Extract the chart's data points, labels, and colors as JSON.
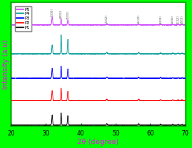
{
  "xlabel": "2θ (degree)",
  "ylabel": "Intensity (a.u)",
  "xlim": [
    20,
    70
  ],
  "background_color": "#ffffff",
  "border_color": "#00ff00",
  "xlabel_color": "#ff00ff",
  "ylabel_color": "#ff00ff",
  "legend_labels": [
    "P5",
    "P4",
    "P3",
    "P2",
    "P1"
  ],
  "legend_colors": [
    "#cc44ff",
    "#009999",
    "#0000ff",
    "#ff0000",
    "#000000"
  ],
  "peak_positions": [
    31.8,
    34.4,
    36.3,
    47.5,
    56.6,
    62.9,
    66.4,
    67.9,
    69.0
  ],
  "peak_labels": [
    "(100)",
    "(002)",
    "(101)",
    "(102)",
    "(110)",
    "(103)",
    "(200)",
    "(112)",
    "(201)"
  ],
  "offsets": [
    4.5,
    3.2,
    2.1,
    1.1,
    0.0
  ],
  "peak_heights_P5": {
    "31.8": 0.35,
    "34.4": 0.28,
    "36.3": 0.22,
    "47.5": 0.04,
    "56.6": 0.04,
    "62.9": 0.03,
    "66.4": 0.025,
    "67.9": 0.025,
    "69.0": 0.025
  },
  "peak_heights_P4": {
    "31.8": 0.4,
    "34.4": 0.85,
    "36.3": 0.65,
    "47.5": 0.06,
    "56.6": 0.06,
    "62.9": 0.04,
    "66.4": 0.03,
    "67.9": 0.03,
    "69.0": 0.03
  },
  "peak_heights_P3": {
    "31.8": 0.45,
    "34.4": 0.55,
    "36.3": 0.42,
    "47.5": 0.06,
    "56.6": 0.06,
    "62.9": 0.04,
    "66.4": 0.03,
    "67.9": 0.03,
    "69.0": 0.03
  },
  "peak_heights_P2": {
    "31.8": 0.45,
    "34.4": 0.55,
    "36.3": 0.42,
    "47.5": 0.06,
    "56.6": 0.06,
    "62.9": 0.04,
    "66.4": 0.03,
    "67.9": 0.03,
    "69.0": 0.03
  },
  "peak_heights_P1": {
    "31.8": 0.45,
    "34.4": 0.55,
    "36.3": 0.42,
    "47.5": 0.06,
    "56.6": 0.06,
    "62.9": 0.04,
    "66.4": 0.03,
    "67.9": 0.03,
    "69.0": 0.03
  },
  "peak_widths": {
    "31.8": 0.28,
    "34.4": 0.22,
    "36.3": 0.28,
    "47.5": 0.35,
    "56.6": 0.35,
    "62.9": 0.35,
    "66.4": 0.28,
    "67.9": 0.28,
    "69.0": 0.28
  },
  "xticks": [
    20,
    30,
    40,
    50,
    60,
    70
  ],
  "tick_color": "#00aa00",
  "spine_color": "#00aa00",
  "annotation_color": "#555555"
}
